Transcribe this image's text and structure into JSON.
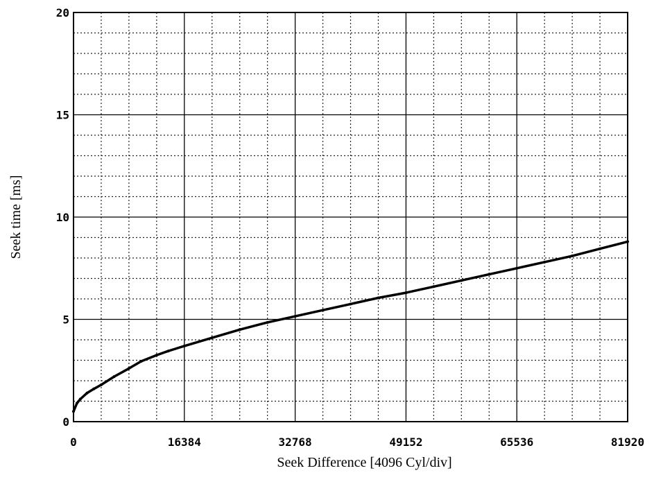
{
  "chart_data": {
    "type": "line",
    "title": "",
    "xlabel": "Seek Difference [4096 Cyl/div]",
    "ylabel": "Seek time [ms]",
    "xlim": [
      0,
      81920
    ],
    "ylim": [
      0,
      20
    ],
    "x_ticks": [
      0,
      16384,
      32768,
      49152,
      65536,
      81920
    ],
    "x_tick_labels": [
      "0",
      "16384",
      "32768",
      "49152",
      "65536",
      "81920"
    ],
    "y_ticks": [
      0,
      5,
      10,
      15,
      20
    ],
    "y_tick_labels": [
      "0",
      "5",
      "10",
      "15",
      "20"
    ],
    "x_minor_step": 4096,
    "y_minor_step": 1,
    "grid": true,
    "legend": "none",
    "series": [
      {
        "color": "#000000",
        "x": [
          0,
          500,
          1000,
          2000,
          3000,
          4096,
          6000,
          8192,
          10000,
          12288,
          14000,
          16384,
          20480,
          24576,
          28672,
          32768,
          36864,
          40960,
          45056,
          49152,
          53248,
          57344,
          61440,
          65536,
          69632,
          73728,
          77824,
          81920
        ],
        "y": [
          0.5,
          0.9,
          1.1,
          1.4,
          1.6,
          1.8,
          2.2,
          2.6,
          2.95,
          3.25,
          3.45,
          3.7,
          4.1,
          4.5,
          4.85,
          5.15,
          5.45,
          5.75,
          6.05,
          6.3,
          6.6,
          6.9,
          7.2,
          7.5,
          7.8,
          8.1,
          8.45,
          8.8
        ]
      }
    ]
  }
}
